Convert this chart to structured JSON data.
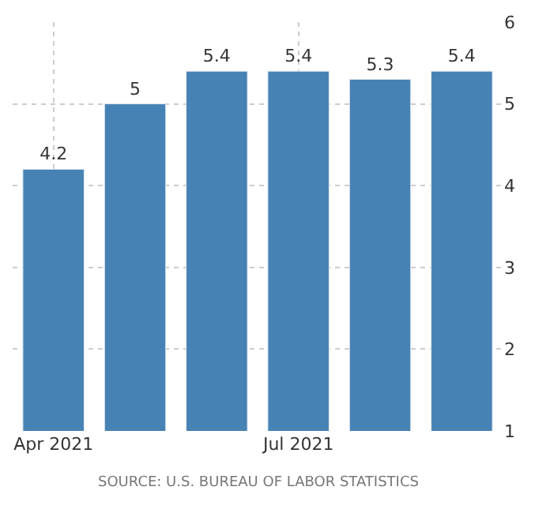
{
  "chart_data": {
    "type": "bar",
    "categories": [
      "Apr 2021",
      null,
      null,
      "Jul 2021",
      null,
      null
    ],
    "values": [
      4.2,
      5,
      5.4,
      5.4,
      5.3,
      5.4
    ],
    "color": "#4682b4",
    "ylim": [
      1,
      6
    ],
    "yticks": [
      1,
      2,
      3,
      4,
      5,
      6
    ],
    "grid": true,
    "data_labels": true,
    "annotations": [
      "SOURCE: U.S. BUREAU OF LABOR STATISTICS"
    ]
  }
}
